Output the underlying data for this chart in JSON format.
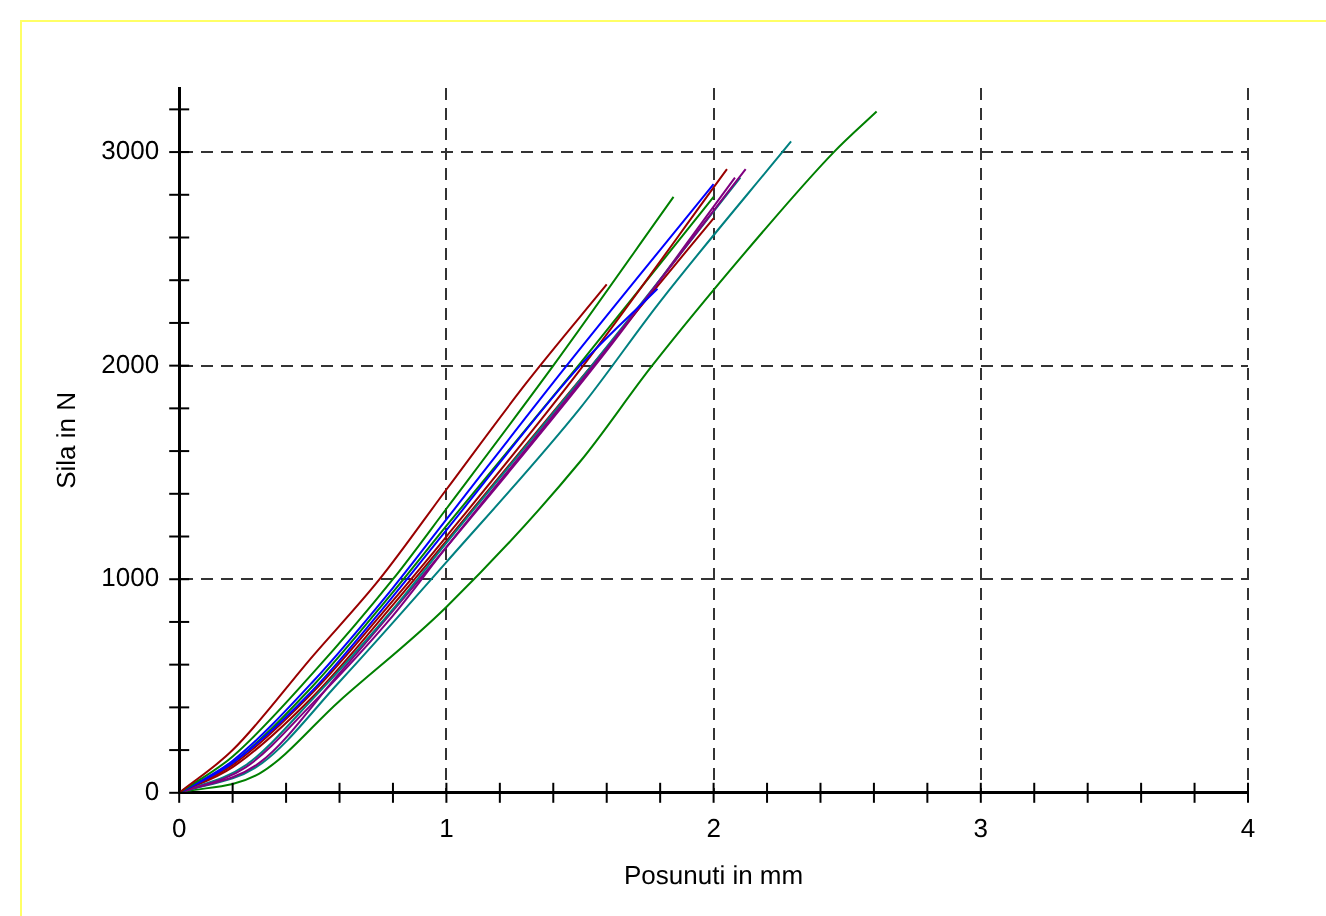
{
  "chart_data": {
    "type": "line",
    "xlabel": "Posunuti in mm",
    "ylabel": "Sila in N",
    "xlim": [
      0,
      4
    ],
    "ylim": [
      0,
      3300
    ],
    "xticks": [
      0,
      {
        "value": 0.2,
        "label": null
      },
      {
        "value": 0.4,
        "label": null
      },
      {
        "value": 0.6,
        "label": null
      },
      {
        "value": 0.8,
        "label": null
      },
      1,
      {
        "value": 1.2,
        "label": null
      },
      {
        "value": 1.4,
        "label": null
      },
      {
        "value": 1.6,
        "label": null
      },
      {
        "value": 1.8,
        "label": null
      },
      2,
      {
        "value": 2.2,
        "label": null
      },
      {
        "value": 2.4,
        "label": null
      },
      {
        "value": 2.6,
        "label": null
      },
      {
        "value": 2.8,
        "label": null
      },
      3,
      {
        "value": 3.2,
        "label": null
      },
      {
        "value": 3.4,
        "label": null
      },
      {
        "value": 3.6,
        "label": null
      },
      {
        "value": 3.8,
        "label": null
      },
      4
    ],
    "yticks": [
      0,
      {
        "value": 200,
        "label": null
      },
      {
        "value": 400,
        "label": null
      },
      {
        "value": 600,
        "label": null
      },
      {
        "value": 800,
        "label": null
      },
      1000,
      {
        "value": 1200,
        "label": null
      },
      {
        "value": 1400,
        "label": null
      },
      {
        "value": 1600,
        "label": null
      },
      {
        "value": 1800,
        "label": null
      },
      2000,
      {
        "value": 2200,
        "label": null
      },
      {
        "value": 2400,
        "label": null
      },
      {
        "value": 2600,
        "label": null
      },
      {
        "value": 2800,
        "label": null
      },
      3000,
      {
        "value": 3200,
        "label": null
      }
    ],
    "grid": true,
    "legend": false,
    "marker": "none",
    "line_style": "solid",
    "series": [
      {
        "color": "#990000",
        "x": [
          0,
          0.2,
          0.5,
          0.75,
          1,
          1.3,
          1.6
        ],
        "values": [
          0,
          200,
          640,
          1000,
          1420,
          1920,
          2380
        ]
      },
      {
        "color": "#008000",
        "x": [
          0,
          0.2,
          0.5,
          0.8,
          1,
          1.4,
          1.85
        ],
        "values": [
          0,
          170,
          560,
          1000,
          1330,
          2000,
          2790
        ]
      },
      {
        "color": "#0000ff",
        "x": [
          0,
          0.2,
          0.5,
          0.8,
          1,
          1.45,
          2
        ],
        "values": [
          0,
          150,
          520,
          960,
          1280,
          2000,
          2850
        ]
      },
      {
        "color": "#0000ff",
        "x": [
          0,
          0.2,
          0.5,
          0.8,
          1,
          1.5,
          1.79
        ],
        "values": [
          0,
          140,
          480,
          920,
          1230,
          2000,
          2360
        ]
      },
      {
        "color": "#990000",
        "x": [
          0,
          0.2,
          0.5,
          0.8,
          1,
          1.5,
          2.05
        ],
        "values": [
          0,
          130,
          470,
          900,
          1200,
          1980,
          2920
        ]
      },
      {
        "color": "#800080",
        "x": [
          0,
          0.25,
          0.5,
          0.8,
          1,
          1.55,
          2.12
        ],
        "values": [
          0,
          120,
          420,
          830,
          1150,
          2000,
          2920
        ]
      },
      {
        "color": "#008080",
        "x": [
          0,
          0.25,
          0.5,
          0.8,
          1,
          1.55,
          2.1
        ],
        "values": [
          0,
          130,
          440,
          860,
          1170,
          2010,
          2880
        ]
      },
      {
        "color": "#990000",
        "x": [
          0,
          0.2,
          0.5,
          0.8,
          1,
          1.55,
          2
        ],
        "values": [
          0,
          120,
          450,
          880,
          1180,
          2010,
          2690
        ]
      },
      {
        "color": "#008000",
        "x": [
          0,
          0.2,
          0.5,
          0.8,
          1,
          1.5,
          2
        ],
        "values": [
          0,
          140,
          500,
          940,
          1250,
          2010,
          2790
        ]
      },
      {
        "color": "#800080",
        "x": [
          0,
          0.3,
          0.6,
          1,
          1.6,
          2.08
        ],
        "values": [
          0,
          140,
          560,
          1150,
          2070,
          2880
        ]
      },
      {
        "color": "#008080",
        "x": [
          0,
          0.3,
          0.6,
          1,
          1.5,
          1.8,
          2.29
        ],
        "values": [
          0,
          130,
          520,
          1080,
          1800,
          2300,
          3050
        ]
      },
      {
        "color": "#008000",
        "x": [
          0,
          0.3,
          0.6,
          1,
          1.5,
          1.77,
          2.2,
          2.45,
          2.61
        ],
        "values": [
          0,
          90,
          430,
          870,
          1550,
          2000,
          2650,
          3000,
          3190
        ]
      }
    ]
  }
}
